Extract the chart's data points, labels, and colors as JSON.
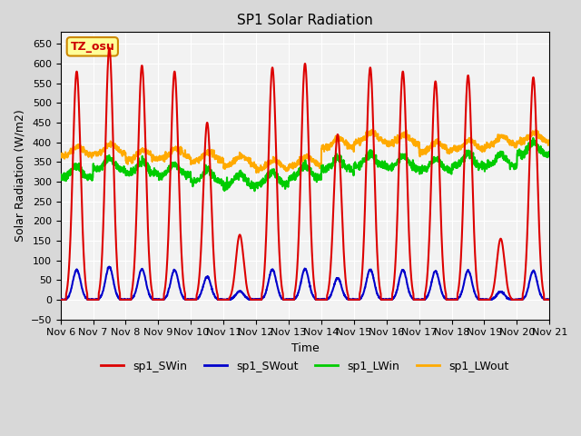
{
  "title": "SP1 Solar Radiation",
  "xlabel": "Time",
  "ylabel": "Solar Radiation (W/m2)",
  "ylim": [
    -50,
    680
  ],
  "yticks": [
    -50,
    0,
    50,
    100,
    150,
    200,
    250,
    300,
    350,
    400,
    450,
    500,
    550,
    600,
    650
  ],
  "annotation_text": "TZ_osu",
  "annotation_bg": "#ffff99",
  "annotation_border": "#cc8800",
  "series": {
    "sp1_SWin": {
      "color": "#dd0000",
      "lw": 1.5
    },
    "sp1_SWout": {
      "color": "#0000cc",
      "lw": 1.5
    },
    "sp1_LWin": {
      "color": "#00cc00",
      "lw": 1.5
    },
    "sp1_LWout": {
      "color": "#ffaa00",
      "lw": 1.5
    }
  },
  "xtick_labels": [
    "Nov 6",
    "Nov 7",
    "Nov 8",
    "Nov 9",
    "Nov 10",
    "Nov 11",
    "Nov 12",
    "Nov 13",
    "Nov 14",
    "Nov 15",
    "Nov 16",
    "Nov 17",
    "Nov 18",
    "Nov 19",
    "Nov 20",
    "Nov 21"
  ],
  "n_days": 15,
  "pts_per_day": 144,
  "sw_peaks": [
    580,
    640,
    595,
    580,
    450,
    165,
    590,
    600,
    420,
    590,
    580,
    555,
    570,
    155,
    565
  ],
  "lw_in_pattern": [
    310,
    330,
    320,
    315,
    300,
    290,
    295,
    310,
    330,
    340,
    335,
    330,
    340,
    340,
    370
  ],
  "lw_out_pattern": [
    365,
    370,
    355,
    360,
    350,
    340,
    330,
    340,
    385,
    400,
    395,
    375,
    380,
    390,
    400
  ]
}
